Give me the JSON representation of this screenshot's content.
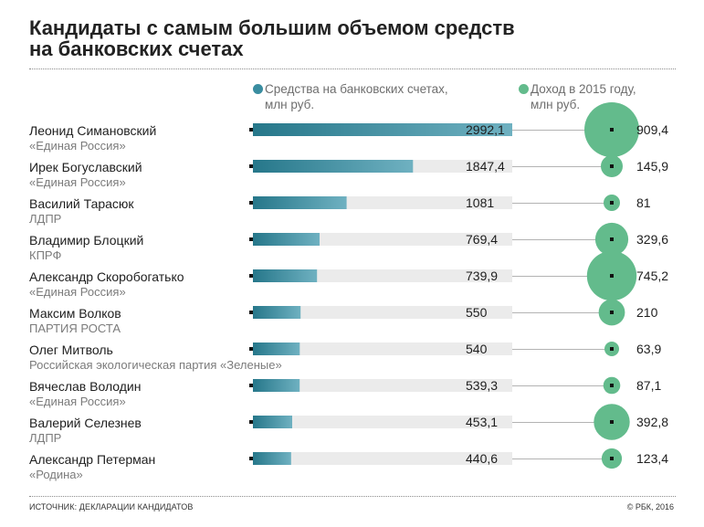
{
  "chart_data": {
    "type": "bar",
    "orientation": "horizontal",
    "title": "Кандидаты с самым большим объемом средств\nна банковских счетах",
    "legend": "top",
    "grid": false,
    "xlim": [
      0,
      2992.1
    ],
    "categories": [
      "Леонид Симановский",
      "Ирек Богуславский",
      "Василий Тарасюк",
      "Владимир Блоцкий",
      "Александр Скоробогатько",
      "Максим Волков",
      "Олег Митволь",
      "Вячеслав Володин",
      "Валерий Селезнев",
      "Александр Петерман"
    ],
    "category_parties": [
      "«Единая Россия»",
      "«Единая Россия»",
      "ЛДПР",
      "КПРФ",
      "«Единая Россия»",
      "ПАРТИЯ РОСТА",
      "Российская экологическая партия «Зеленые»",
      "«Единая Россия»",
      "ЛДПР",
      "«Родина»"
    ],
    "series": [
      {
        "name": "Средства на банковских счетах,\nмлн руб.",
        "mark": "bar",
        "color": "#3a8da0",
        "values": [
          2992.1,
          1847.4,
          1081,
          769.4,
          739.9,
          550,
          540,
          539.3,
          453.1,
          440.6
        ],
        "labels": [
          "2992,1",
          "1847,4",
          "1081",
          "769,4",
          "739,9",
          "550",
          "540",
          "539,3",
          "453,1",
          "440,6"
        ]
      },
      {
        "name": "Доход в 2015 году,\nмлн руб.",
        "mark": "bubble",
        "color": "#63bb8c",
        "values": [
          909.4,
          145.9,
          81,
          329.6,
          745.2,
          210,
          63.9,
          87.1,
          392.8,
          123.4
        ],
        "labels": [
          "909,4",
          "145,9",
          "81",
          "329,6",
          "745,2",
          "210",
          "63,9",
          "87,1",
          "392,8",
          "123,4"
        ]
      }
    ]
  },
  "colors": {
    "bar_gradient_start": "#26778a",
    "bar_gradient_end": "#6fb1c1",
    "bar_track": "#ebebeb",
    "connector": "#b3b3b3",
    "marker": "#111111"
  },
  "footer": {
    "source": "ИСТОЧНИК: ДЕКЛАРАЦИИ КАНДИДАТОВ",
    "copyright": "© РБК, 2016"
  }
}
